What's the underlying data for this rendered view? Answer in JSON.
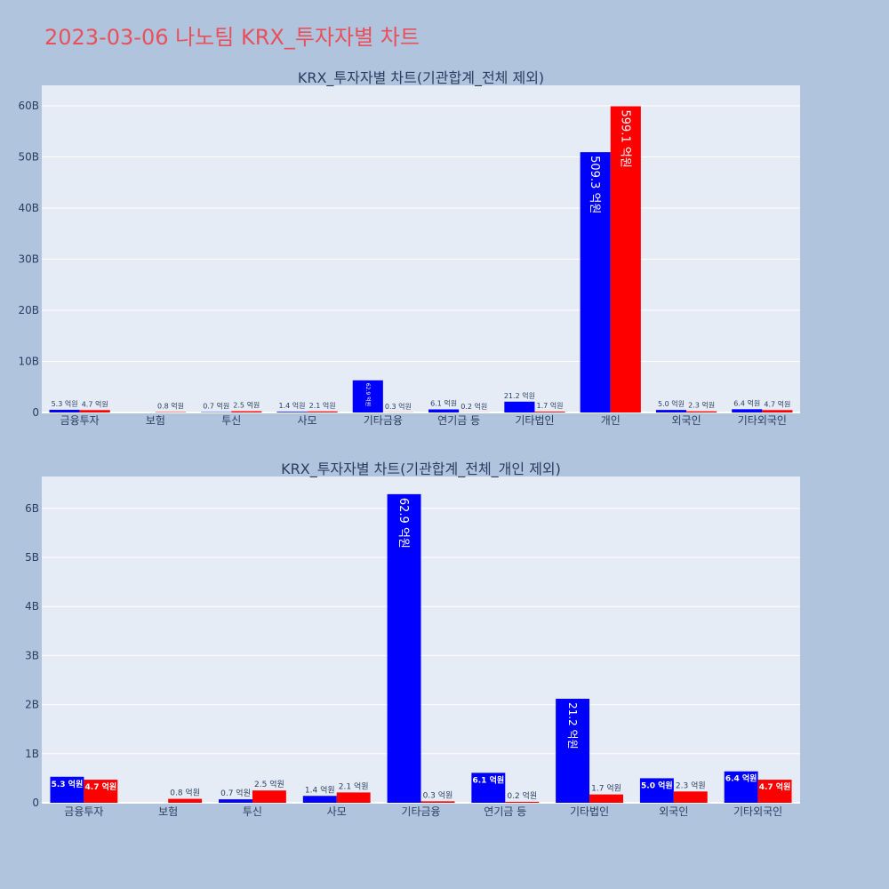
{
  "title": "2023-03-06 나노팀 KRX_투자자별 차트",
  "colors": {
    "buy": "#0000ff",
    "sell": "#ff0000",
    "plot_bg": "#e5ecf6",
    "page_bg": "#b0c4de",
    "title": "#e8505b",
    "text": "#2a3f5f"
  },
  "chart_data": [
    {
      "type": "bar",
      "title": "KRX_투자자별 차트(기관합계_전체 제외)",
      "categories": [
        "금융투자",
        "보험",
        "투신",
        "사모",
        "기타금융",
        "연기금 등",
        "기타법인",
        "개인",
        "외국인",
        "기타외국인"
      ],
      "ylim": [
        0,
        64
      ],
      "yticks": [
        0,
        10,
        20,
        30,
        40,
        50,
        60
      ],
      "ytick_labels": [
        "0",
        "10B",
        "20B",
        "30B",
        "40B",
        "50B",
        "60B"
      ],
      "grid": true,
      "series": [
        {
          "values": [
            0.53,
            0.0,
            0.07,
            0.14,
            6.29,
            0.61,
            2.12,
            50.93,
            0.5,
            0.64
          ],
          "labels": [
            "5.3 억원",
            "",
            "0.7 억원",
            "1.4 억원",
            "62.9 억원",
            "6.1 억원",
            "21.2 억원",
            "509.3 억원",
            "5.0 억원",
            "6.4 억원"
          ]
        },
        {
          "values": [
            0.47,
            0.08,
            0.25,
            0.21,
            0.03,
            0.02,
            0.17,
            59.91,
            0.23,
            0.47
          ],
          "labels": [
            "4.7 억원",
            "0.8 억원",
            "2.5 억원",
            "2.1 억원",
            "0.3 억원",
            "0.2 억원",
            "1.7 억원",
            "599.1 억원",
            "2.3 억원",
            "4.7 억원"
          ]
        }
      ]
    },
    {
      "type": "bar",
      "title": "KRX_투자자별 차트(기관합계_전체_개인 제외)",
      "categories": [
        "금융투자",
        "보험",
        "투신",
        "사모",
        "기타금융",
        "연기금 등",
        "기타법인",
        "외국인",
        "기타외국인"
      ],
      "ylim": [
        0,
        6.65
      ],
      "yticks": [
        0,
        1,
        2,
        3,
        4,
        5,
        6
      ],
      "ytick_labels": [
        "0",
        "1B",
        "2B",
        "3B",
        "4B",
        "5B",
        "6B"
      ],
      "grid": true,
      "series": [
        {
          "values": [
            0.53,
            0.0,
            0.07,
            0.14,
            6.29,
            0.61,
            2.12,
            0.5,
            0.64
          ],
          "labels": [
            "5.3 억원",
            "",
            "0.7 억원",
            "1.4 억원",
            "62.9 억원",
            "6.1 억원",
            "21.2 억원",
            "5.0 억원",
            "6.4 억원"
          ]
        },
        {
          "values": [
            0.47,
            0.08,
            0.25,
            0.21,
            0.03,
            0.02,
            0.17,
            0.23,
            0.47
          ],
          "labels": [
            "4.7 억원",
            "0.8 억원",
            "2.5 억원",
            "2.1 억원",
            "0.3 억원",
            "0.2 억원",
            "1.7 억원",
            "2.3 억원",
            "4.7 억원"
          ]
        }
      ]
    }
  ]
}
